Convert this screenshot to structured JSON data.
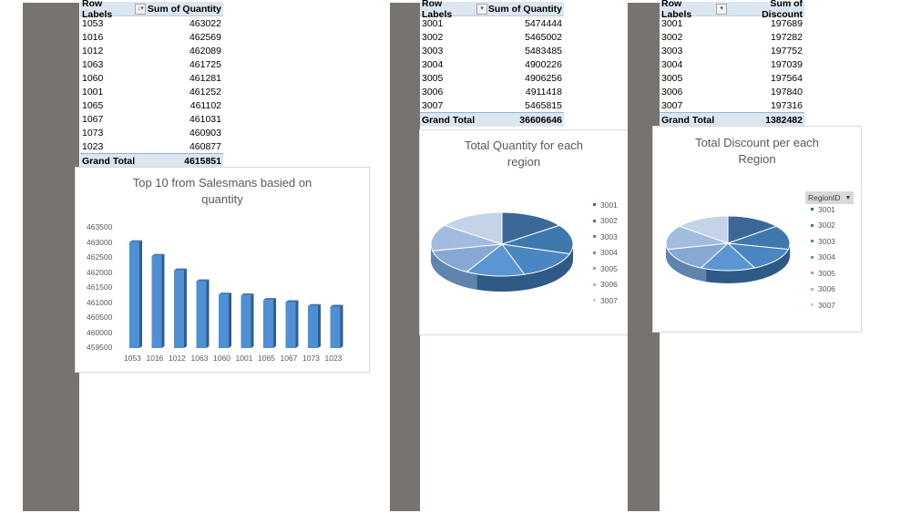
{
  "panel1": {
    "table": {
      "header_row_label": "Row Labels",
      "header_value_label": "Sum of Quantity",
      "filter_icon": "sort-filter-icon",
      "rows": [
        {
          "label": "1053",
          "value": "463022"
        },
        {
          "label": "1016",
          "value": "462569"
        },
        {
          "label": "1012",
          "value": "462089"
        },
        {
          "label": "1063",
          "value": "461725"
        },
        {
          "label": "1060",
          "value": "461281"
        },
        {
          "label": "1001",
          "value": "461252"
        },
        {
          "label": "1065",
          "value": "461102"
        },
        {
          "label": "1067",
          "value": "461031"
        },
        {
          "label": "1073",
          "value": "460903"
        },
        {
          "label": "1023",
          "value": "460877"
        }
      ],
      "total_label": "Grand Total",
      "total_value": "4615851"
    },
    "chart": {
      "title_line1": "Top 10 from Salesmans basied on",
      "title_line2": "quantity",
      "y_ticks": [
        "463500",
        "463000",
        "462500",
        "462000",
        "461500",
        "461000",
        "460500",
        "460000",
        "459500"
      ]
    }
  },
  "panel2": {
    "table": {
      "header_row_label": "Row Labels",
      "header_value_label": "Sum of Quantity",
      "filter_icon": "dropdown-icon",
      "rows": [
        {
          "label": "3001",
          "value": "5474444"
        },
        {
          "label": "3002",
          "value": "5465002"
        },
        {
          "label": "3003",
          "value": "5483485"
        },
        {
          "label": "3004",
          "value": "4900226"
        },
        {
          "label": "3005",
          "value": "4906256"
        },
        {
          "label": "3006",
          "value": "4911418"
        },
        {
          "label": "3007",
          "value": "5465815"
        }
      ],
      "total_label": "Grand Total",
      "total_value": "36606646"
    },
    "chart": {
      "title_line1": "Total Quantity for each",
      "title_line2": "region",
      "legend": [
        "3001",
        "3002",
        "3003",
        "3004",
        "3005",
        "3006",
        "3007"
      ]
    }
  },
  "panel3": {
    "table": {
      "header_row_label": "Row Labels",
      "header_value_label": "Sum of Discount",
      "filter_icon": "dropdown-icon",
      "rows": [
        {
          "label": "3001",
          "value": "197689"
        },
        {
          "label": "3002",
          "value": "197282"
        },
        {
          "label": "3003",
          "value": "197752"
        },
        {
          "label": "3004",
          "value": "197039"
        },
        {
          "label": "3005",
          "value": "197564"
        },
        {
          "label": "3006",
          "value": "197840"
        },
        {
          "label": "3007",
          "value": "197316"
        }
      ],
      "total_label": "Grand Total",
      "total_value": "1382482"
    },
    "chart": {
      "title_line1": "Total Discount per each",
      "title_line2": "Region",
      "field_button": "RegionID",
      "legend": [
        "3001",
        "3002",
        "3003",
        "3004",
        "3005",
        "3006",
        "3007"
      ]
    }
  },
  "colors": {
    "slices": [
      "#3b6896",
      "#3f78ad",
      "#4a86c2",
      "#5b96d2",
      "#85a9d3",
      "#a1bcde",
      "#c4d3e8"
    ],
    "bar": "#4f8fd3",
    "bar_dark": "#2e5f93",
    "pivot_header_bg": "#dce6f1",
    "gray_bar": "#767371"
  },
  "chart_data": [
    {
      "type": "bar",
      "title": "Top 10 from Salesmans basied on quantity",
      "xlabel": "",
      "ylabel": "",
      "categories": [
        "1053",
        "1016",
        "1012",
        "1063",
        "1060",
        "1001",
        "1065",
        "1067",
        "1073",
        "1023"
      ],
      "values": [
        463022,
        462569,
        462089,
        461725,
        461281,
        461252,
        461102,
        461031,
        460903,
        460877
      ],
      "ylim": [
        459500,
        463500
      ],
      "y_ticks": [
        459500,
        460000,
        460500,
        461000,
        461500,
        462000,
        462500,
        463000,
        463500
      ],
      "grid": false,
      "legend": "none",
      "style": "3d-column"
    },
    {
      "type": "pie",
      "title": "Total Quantity for each region",
      "categories": [
        "3001",
        "3002",
        "3003",
        "3004",
        "3005",
        "3006",
        "3007"
      ],
      "values": [
        5474444,
        5465002,
        5483485,
        4900226,
        4906256,
        4911418,
        5465815
      ],
      "legend_position": "right",
      "style": "3d-pie"
    },
    {
      "type": "pie",
      "title": "Total Discount per each Region",
      "categories": [
        "3001",
        "3002",
        "3003",
        "3004",
        "3005",
        "3006",
        "3007"
      ],
      "values": [
        197689,
        197282,
        197752,
        197039,
        197564,
        197840,
        197316
      ],
      "legend_title": "RegionID",
      "legend_position": "right",
      "style": "3d-pie"
    }
  ]
}
